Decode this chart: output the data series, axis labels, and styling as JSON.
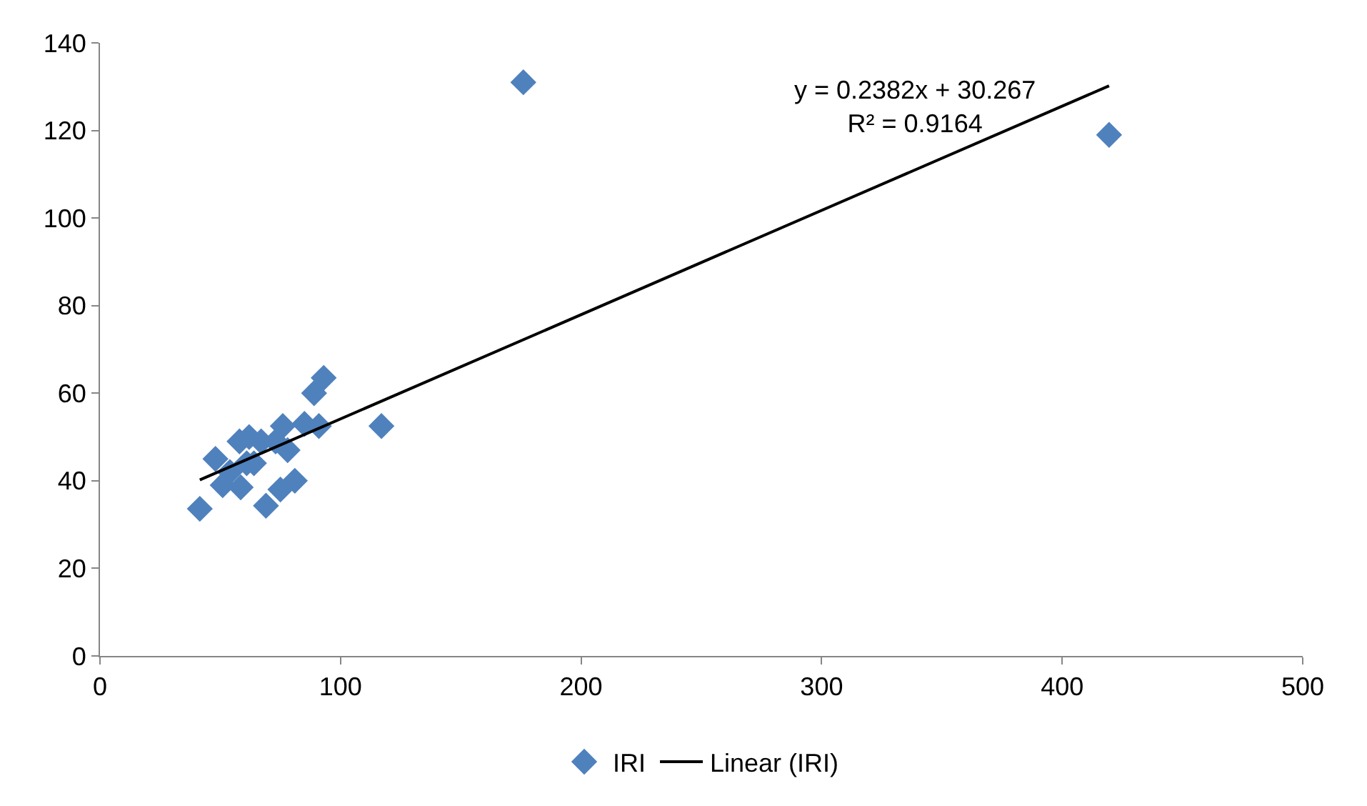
{
  "chart_data": {
    "type": "scatter",
    "marker": "diamond",
    "legend": "bottom",
    "xlim": [
      0,
      500
    ],
    "xticks": [
      0,
      100,
      200,
      300,
      400,
      500
    ],
    "ylim": [
      0,
      140
    ],
    "yticks": [
      0,
      20,
      40,
      60,
      80,
      100,
      120,
      140
    ],
    "series": [
      {
        "name": "IRI",
        "color": "#4f81bd",
        "x": [
          41.5,
          48,
          51,
          54,
          58,
          58.5,
          61,
          62,
          64,
          67,
          69,
          73,
          75,
          76,
          78,
          81,
          85,
          89,
          91,
          93,
          117,
          176,
          419.5
        ],
        "values": [
          33.6,
          45,
          39,
          42,
          49,
          38.5,
          44,
          50,
          44,
          49,
          34.3,
          49,
          38,
          52.5,
          47,
          40,
          53,
          60,
          52.5,
          63.5,
          52.5,
          131,
          119
        ]
      },
      {
        "name": "Linear (IRI)",
        "color": "#000000",
        "type": "line",
        "marker": "none",
        "x": [
          41.5,
          419.5
        ],
        "values": [
          40.2,
          130.2
        ]
      }
    ],
    "annotations": [
      "y = 0.2382x + 30.267\nR² = 0.9164"
    ]
  }
}
